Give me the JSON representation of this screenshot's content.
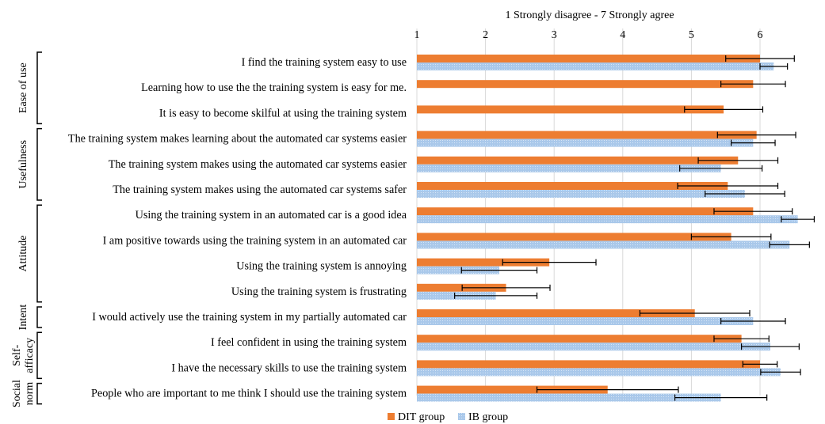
{
  "chart_data": {
    "type": "bar",
    "orientation": "horizontal",
    "title": "",
    "xlabel": "1 Strongly disagree - 7 Strongly agree",
    "xlim": [
      1,
      6.9
    ],
    "x_ticks": [
      1,
      2,
      3,
      4,
      5,
      6
    ],
    "grid": "vertical",
    "legend_position": "bottom",
    "categories": [
      "I find the training system easy to use",
      "Learning how to use the the training system is easy for me.",
      "It is easy to become skilful at using the training system",
      "The training system makes learning about the automated car systems easier",
      "The training system makes using the automated car systems easier",
      "The training system makes using the automated car systems safer",
      "Using the training system in an automated car is a good idea",
      "I am positive towards using the training system in an automated car",
      "Using the training system is annoying",
      "Using the training system is frustrating",
      "I would actively use the training system in my partially automated car",
      "I feel confident in using the training system",
      "I have the necessary skills to use the training system",
      "People who are important to me think I should use the training system"
    ],
    "groups": [
      {
        "label": "Ease of use",
        "first": 0,
        "last": 2
      },
      {
        "label": "Usefulness",
        "first": 3,
        "last": 5
      },
      {
        "label": "Attitude",
        "first": 6,
        "last": 9
      },
      {
        "label": "Intent",
        "first": 10,
        "last": 10
      },
      {
        "label": "Self-\nafficacy",
        "first": 11,
        "last": 12
      },
      {
        "label": "Social\nnorm",
        "first": 13,
        "last": 13
      }
    ],
    "series": [
      {
        "name": "DIT group",
        "color": "#ed7d31",
        "values": [
          6.0,
          5.9,
          5.47,
          5.95,
          5.68,
          5.53,
          5.9,
          5.58,
          2.93,
          2.3,
          5.05,
          5.73,
          6.0,
          3.78
        ],
        "errors": [
          0.5,
          0.47,
          0.57,
          0.57,
          0.58,
          0.73,
          0.57,
          0.58,
          0.68,
          0.64,
          0.8,
          0.4,
          0.25,
          1.03
        ]
      },
      {
        "name": "IB group",
        "color": "#a9c8ea",
        "values": [
          6.2,
          null,
          null,
          5.9,
          5.43,
          5.78,
          6.55,
          6.43,
          2.2,
          2.15,
          5.9,
          6.15,
          6.3,
          5.43
        ],
        "errors": [
          0.2,
          null,
          null,
          0.32,
          0.6,
          0.58,
          0.24,
          0.29,
          0.55,
          0.6,
          0.47,
          0.42,
          0.29,
          0.67
        ]
      }
    ]
  }
}
